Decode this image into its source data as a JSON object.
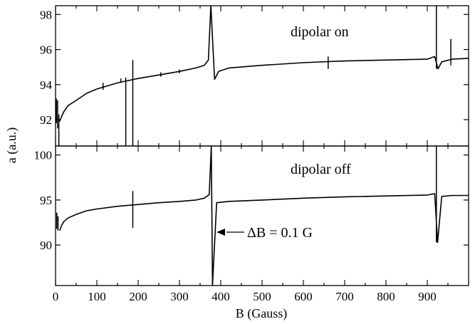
{
  "chart_data": [
    {
      "type": "line",
      "panel": "top",
      "annotation": "dipolar on",
      "xlim": [
        0,
        1000
      ],
      "ylim": [
        90.5,
        98.5
      ],
      "yticks": [
        92,
        94,
        96,
        98
      ],
      "grid": false,
      "baseline": {
        "x": [
          10,
          15,
          20,
          30,
          50,
          75,
          100,
          150,
          200,
          250,
          300,
          340,
          360,
          370,
          376,
          385,
          395,
          420,
          500,
          600,
          700,
          800,
          900,
          918,
          926,
          935,
          960,
          1000
        ],
        "y": [
          91.9,
          92.2,
          92.45,
          92.8,
          93.1,
          93.5,
          93.75,
          94.1,
          94.35,
          94.55,
          94.75,
          94.95,
          95.1,
          95.4,
          98.5,
          94.3,
          94.75,
          94.95,
          95.1,
          95.25,
          95.35,
          95.4,
          95.45,
          95.6,
          94.9,
          95.3,
          95.45,
          95.5
        ]
      },
      "resonance_spikes": [
        {
          "x": 2,
          "ymin": 91.8,
          "ymax": 93.2
        },
        {
          "x": 5,
          "ymin": 91.5,
          "ymax": 93.1
        },
        {
          "x": 8,
          "ymin": 90.5,
          "ymax": 92.3
        },
        {
          "x": 115,
          "ymin": 93.7,
          "ymax": 94.1
        },
        {
          "x": 158,
          "ymin": 94.1,
          "ymax": 94.35
        },
        {
          "x": 170,
          "ymin": 90.5,
          "ymax": 94.4
        },
        {
          "x": 187,
          "ymin": 90.5,
          "ymax": 95.4
        },
        {
          "x": 255,
          "ymin": 94.45,
          "ymax": 94.7
        },
        {
          "x": 300,
          "ymin": 94.65,
          "ymax": 94.85
        },
        {
          "x": 660,
          "ymin": 94.9,
          "ymax": 95.6
        },
        {
          "x": 922,
          "ymin": 94.9,
          "ymax": 98.5
        },
        {
          "x": 957,
          "ymin": 95.1,
          "ymax": 96.6
        }
      ]
    },
    {
      "type": "line",
      "panel": "bottom",
      "annotation": "dipolar off",
      "xlim": [
        0,
        1000
      ],
      "ylim": [
        85.5,
        101
      ],
      "yticks": [
        90,
        95,
        100
      ],
      "xticks": [
        0,
        100,
        200,
        300,
        400,
        500,
        600,
        700,
        800,
        900
      ],
      "xlabel": "B (Gauss)",
      "grid": false,
      "baseline": {
        "x": [
          10,
          15,
          20,
          30,
          50,
          75,
          100,
          150,
          200,
          250,
          300,
          340,
          360,
          372,
          377,
          380,
          390,
          420,
          500,
          600,
          700,
          800,
          900,
          918,
          925,
          935,
          960,
          1000
        ],
        "y": [
          91.6,
          92.2,
          92.6,
          93.0,
          93.4,
          93.8,
          94.0,
          94.3,
          94.5,
          94.7,
          94.85,
          95.0,
          95.2,
          95.6,
          101,
          85.5,
          94.7,
          94.85,
          95.0,
          95.2,
          95.35,
          95.45,
          95.55,
          95.7,
          90.3,
          95.4,
          95.5,
          95.5
        ]
      },
      "resonance_spikes": [
        {
          "x": 3,
          "ymin": 91.8,
          "ymax": 93.6
        },
        {
          "x": 6,
          "ymin": 91.6,
          "ymax": 93.2
        },
        {
          "x": 187,
          "ymin": 91.9,
          "ymax": 96.0
        },
        {
          "x": 922,
          "ymin": 90.3,
          "ymax": 101
        }
      ],
      "arrow_annotation": {
        "text": "ΔB = 0.1 G",
        "x": 380,
        "y": 91.2
      }
    }
  ],
  "ylabel": "a (a.u.)"
}
